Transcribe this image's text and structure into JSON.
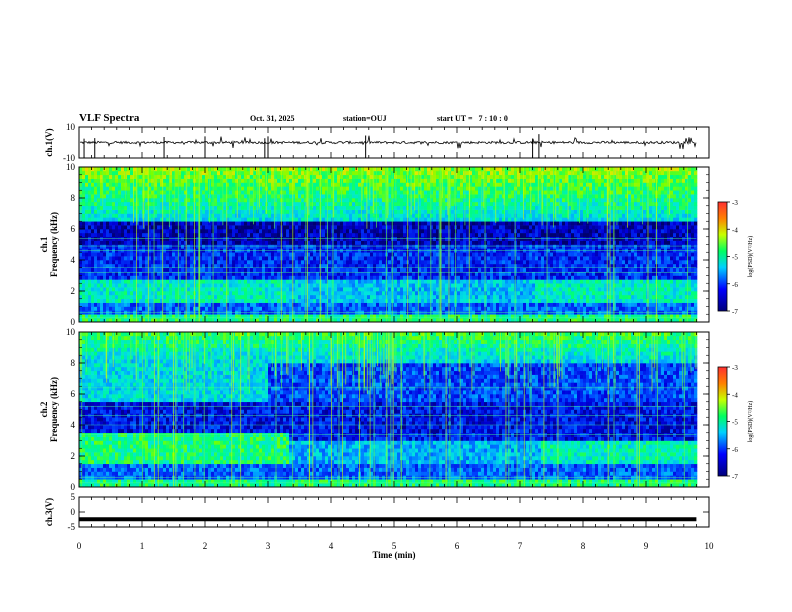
{
  "header": {
    "title": "VLF Spectra",
    "date": "Oct. 31, 2025",
    "station": "station=OUJ",
    "start_ut": "start UT =   7 : 10 : 0"
  },
  "chart_data": [
    {
      "type": "line",
      "name": "ch1-waveform",
      "ylabel": "ch.1(V)",
      "ylim": [
        -10,
        10
      ],
      "y_tick_labels": [
        "10",
        "-10"
      ],
      "baseline_value": 0,
      "xlim": [
        0,
        10
      ]
    },
    {
      "type": "heatmap",
      "name": "ch1-spectrogram",
      "ylabel": "ch.1\nFrequency (kHz)",
      "ylim": [
        0,
        10
      ],
      "y_tick_labels": [
        "0",
        "2",
        "4",
        "6",
        "8",
        "10"
      ],
      "xlim": [
        0,
        10
      ],
      "data_end_min": 9.8,
      "colorbar": {
        "label": "log(PSD)(V²/Hz)",
        "range": [
          -7,
          -3
        ],
        "tick_labels": [
          "-3",
          "-4",
          "-5",
          "-6",
          "-7"
        ]
      },
      "bands": [
        {
          "from_khz": 0,
          "to_khz": 0.6,
          "level": "high"
        },
        {
          "from_khz": 1.2,
          "to_khz": 2.8,
          "level": "medium-high"
        },
        {
          "from_khz": 2.8,
          "to_khz": 5.0,
          "level": "low"
        },
        {
          "from_khz": 5.0,
          "to_khz": 6.5,
          "level": "very-low"
        },
        {
          "from_khz": 6.5,
          "to_khz": 10,
          "level": "high",
          "note": "sferics bursts"
        }
      ]
    },
    {
      "type": "heatmap",
      "name": "ch2-spectrogram",
      "ylabel": "ch.2\nFrequency (kHz)",
      "ylim": [
        0,
        10
      ],
      "y_tick_labels": [
        "0",
        "2",
        "4",
        "6",
        "8",
        "10"
      ],
      "xlim": [
        0,
        10
      ],
      "data_end_min": 9.8,
      "colorbar": {
        "label": "log(PSD)(V²/Hz)",
        "range": [
          -7,
          -3
        ],
        "tick_labels": [
          "-3",
          "-4",
          "-5",
          "-6",
          "-7"
        ]
      },
      "bands": [
        {
          "from_khz": 0,
          "to_khz": 0.6,
          "level": "high"
        },
        {
          "from_khz": 1.5,
          "to_khz": 3.6,
          "level": "high",
          "until_min": 3.3
        },
        {
          "from_khz": 1.5,
          "to_khz": 3.0,
          "level": "medium",
          "from_min": 3.3
        },
        {
          "from_khz": 5.5,
          "to_khz": 8.0,
          "level": "medium-high",
          "until_min": 3.0
        },
        {
          "from_khz": 7.0,
          "to_khz": 10,
          "level": "high",
          "note": "sferics bursts"
        }
      ]
    },
    {
      "type": "line",
      "name": "ch3-waveform",
      "ylabel": "ch.3(V)",
      "ylim": [
        -5,
        5
      ],
      "y_tick_labels": [
        "5",
        "0",
        "-5"
      ],
      "constant_value": -2.4,
      "xlim": [
        0,
        10
      ]
    }
  ],
  "x_axis": {
    "label": "Time (min)",
    "range": [
      0,
      10
    ],
    "tick_labels": [
      "0",
      "1",
      "2",
      "3",
      "4",
      "5",
      "6",
      "7",
      "8",
      "9",
      "10"
    ]
  }
}
